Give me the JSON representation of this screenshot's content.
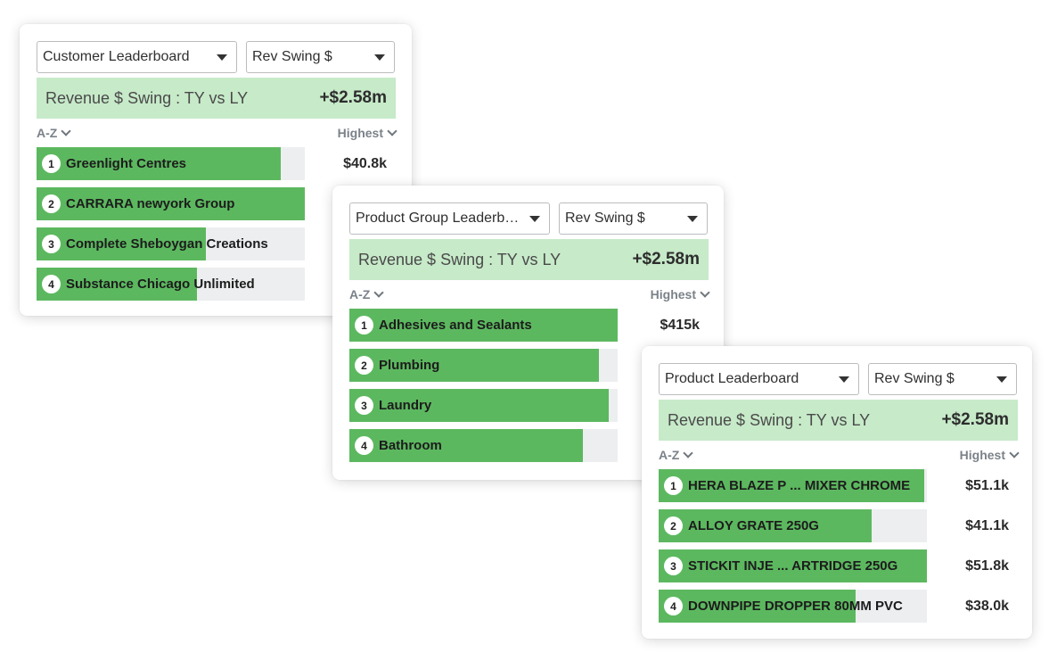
{
  "cards": [
    {
      "leaderboard_select": "Customer Leaderboard",
      "metric_select": "Rev Swing $",
      "banner_label": "Revenue $ Swing : TY vs LY",
      "banner_value": "+$2.58m",
      "sort_left": "A-Z",
      "sort_right": "Highest",
      "rows": [
        {
          "rank": "1",
          "name": "Greenlight Centres",
          "value": "$40.8k",
          "bar_fraction": 0.91
        },
        {
          "rank": "2",
          "name": "CARRARA newyork Group",
          "value": "",
          "bar_fraction": 1.0
        },
        {
          "rank": "3",
          "name": "Complete Sheboygan Creations",
          "value": "",
          "bar_fraction": 0.63
        },
        {
          "rank": "4",
          "name": "Substance Chicago Unlimited",
          "value": "",
          "bar_fraction": 0.597
        }
      ]
    },
    {
      "leaderboard_select": "Product Group Leaderboard",
      "metric_select": "Rev Swing $",
      "banner_label": "Revenue $ Swing : TY vs LY",
      "banner_value": "+$2.58m",
      "sort_left": "A-Z",
      "sort_right": "Highest",
      "rows": [
        {
          "rank": "1",
          "name": "Adhesives and Sealants",
          "value": "$415k",
          "bar_fraction": 1.0
        },
        {
          "rank": "2",
          "name": "Plumbing",
          "value": "",
          "bar_fraction": 0.93
        },
        {
          "rank": "3",
          "name": "Laundry",
          "value": "",
          "bar_fraction": 0.967
        },
        {
          "rank": "4",
          "name": "Bathroom",
          "value": "",
          "bar_fraction": 0.87
        }
      ]
    },
    {
      "leaderboard_select": "Product Leaderboard",
      "metric_select": "Rev Swing $",
      "banner_label": "Revenue $ Swing : TY vs LY",
      "banner_value": "+$2.58m",
      "sort_left": "A-Z",
      "sort_right": "Highest",
      "rows": [
        {
          "rank": "1",
          "name": "HERA BLAZE P ... MIXER CHROME",
          "value": "$51.1k",
          "bar_fraction": 0.99
        },
        {
          "rank": "2",
          "name": "ALLOY GRATE 250G",
          "value": "$41.1k",
          "bar_fraction": 0.795
        },
        {
          "rank": "3",
          "name": "STICKIT INJE ... ARTRIDGE 250G",
          "value": "$51.8k",
          "bar_fraction": 1.0
        },
        {
          "rank": "4",
          "name": "DOWNPIPE DROPPER 80MM PVC",
          "value": "$38.0k",
          "bar_fraction": 0.735
        }
      ]
    }
  ],
  "icons": {
    "dropdown": "caret-down-icon",
    "sort": "chevron-down-icon"
  },
  "colors": {
    "bar_fill": "#5cb85f",
    "bar_track": "#eceef0",
    "banner_bg": "#c7eac9"
  }
}
